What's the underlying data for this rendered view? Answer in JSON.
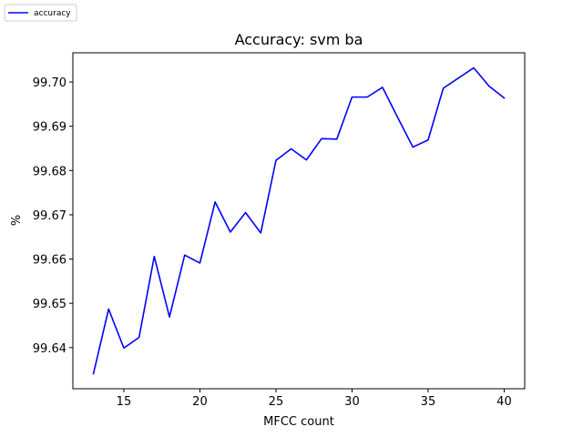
{
  "chart_data": {
    "type": "line",
    "title": "Accuracy: svm ba",
    "xlabel": "MFCC count",
    "ylabel": "%",
    "xlim": [
      11.65,
      41.35
    ],
    "ylim": [
      99.6307,
      99.7066
    ],
    "xticks": [
      15,
      20,
      25,
      30,
      35,
      40
    ],
    "yticks": [
      99.64,
      99.65,
      99.66,
      99.67,
      99.68,
      99.69,
      99.7
    ],
    "ytick_labels": [
      "99.64",
      "99.65",
      "99.66",
      "99.67",
      "99.68",
      "99.69",
      "99.70"
    ],
    "grid": false,
    "legend_position": "top-left (outside axes)",
    "series": [
      {
        "name": "accuracy",
        "color": "#0000ff",
        "x": [
          13,
          14,
          15,
          16,
          17,
          18,
          19,
          20,
          21,
          22,
          23,
          24,
          25,
          26,
          27,
          28,
          29,
          30,
          31,
          32,
          33,
          34,
          35,
          36,
          37,
          38,
          39,
          40
        ],
        "y": [
          99.6341,
          99.6487,
          99.6399,
          99.6423,
          99.6606,
          99.6469,
          99.6609,
          99.6591,
          99.6729,
          99.6661,
          99.6705,
          99.6659,
          99.6823,
          99.6849,
          99.6824,
          99.6872,
          99.6871,
          99.6966,
          99.6966,
          99.6988,
          99.692,
          99.6853,
          99.6869,
          99.6986,
          99.7009,
          99.7032,
          99.6991,
          99.6964
        ]
      }
    ]
  }
}
